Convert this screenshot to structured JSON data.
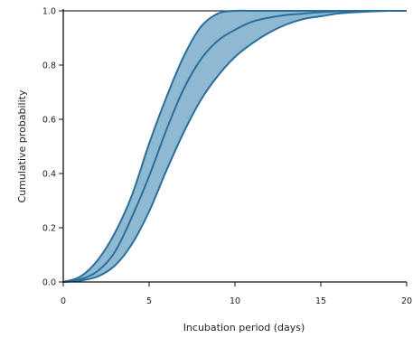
{
  "chart_data": {
    "type": "area",
    "title": "",
    "xlabel": "Incubation period (days)",
    "ylabel": "Cumulative probability",
    "xlim": [
      0,
      20
    ],
    "ylim": [
      0,
      1
    ],
    "x_ticks": [
      "0",
      "5",
      "10",
      "15",
      "20"
    ],
    "y_ticks": [
      "0.0",
      "0.2",
      "0.4",
      "0.6",
      "0.8",
      "1.0"
    ],
    "grid": false,
    "x": [
      0,
      1,
      2,
      3,
      4,
      5,
      6,
      7,
      8,
      9,
      10,
      11,
      12,
      13,
      14,
      15,
      16,
      17,
      18,
      19,
      20
    ],
    "series": [
      {
        "role": "upper",
        "values": [
          0.0,
          0.02,
          0.08,
          0.18,
          0.32,
          0.51,
          0.68,
          0.83,
          0.94,
          0.99,
          1.0,
          1.0,
          1.0,
          1.0,
          1.0,
          1.0,
          1.0,
          1.0,
          1.0,
          1.0,
          1.0
        ]
      },
      {
        "role": "median",
        "values": [
          0.0,
          0.01,
          0.04,
          0.11,
          0.24,
          0.39,
          0.56,
          0.71,
          0.82,
          0.89,
          0.93,
          0.96,
          0.975,
          0.985,
          0.99,
          0.995,
          0.998,
          0.999,
          1.0,
          1.0,
          1.0
        ]
      },
      {
        "role": "lower",
        "values": [
          0.0,
          0.005,
          0.02,
          0.06,
          0.14,
          0.26,
          0.41,
          0.55,
          0.67,
          0.76,
          0.83,
          0.88,
          0.92,
          0.95,
          0.97,
          0.98,
          0.99,
          0.995,
          0.998,
          1.0,
          1.0
        ]
      }
    ],
    "colors": {
      "band_fill": "#8fb9d3",
      "line": "#2a6f9c",
      "axis": "#111111"
    }
  }
}
